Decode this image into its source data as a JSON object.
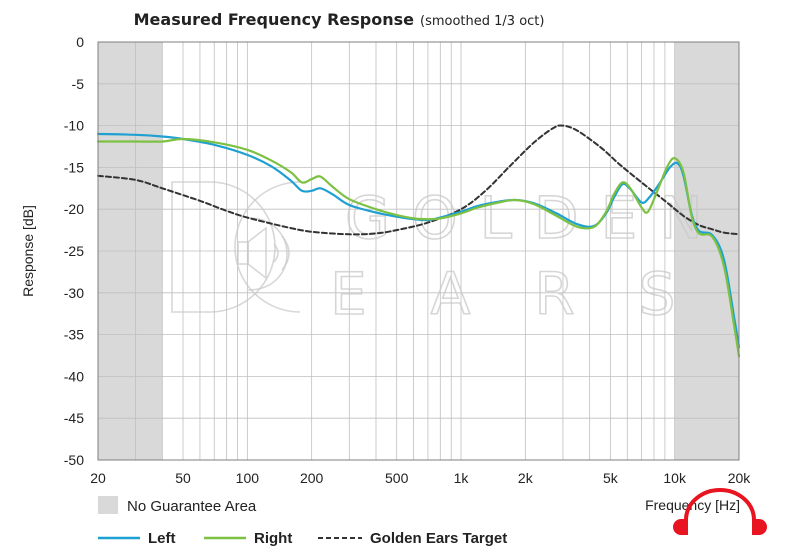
{
  "chart_data": {
    "type": "line",
    "title": "Measured Frequency Response",
    "subtitle": "(smoothed 1/3 oct)",
    "xlabel": "Frequency [Hz]",
    "ylabel": "Response [dB]",
    "xscale": "log",
    "xlim": [
      20,
      20000
    ],
    "ylim": [
      -50,
      0
    ],
    "x_ticks": [
      {
        "value": 20,
        "label": "20"
      },
      {
        "value": 50,
        "label": "50"
      },
      {
        "value": 100,
        "label": "100"
      },
      {
        "value": 200,
        "label": "200"
      },
      {
        "value": 500,
        "label": "500"
      },
      {
        "value": 1000,
        "label": "1k"
      },
      {
        "value": 2000,
        "label": "2k"
      },
      {
        "value": 5000,
        "label": "5k"
      },
      {
        "value": 10000,
        "label": "10k"
      },
      {
        "value": 20000,
        "label": "20k"
      }
    ],
    "y_ticks": [
      0,
      -5,
      -10,
      -15,
      -20,
      -25,
      -30,
      -35,
      -40,
      -45,
      -50
    ],
    "grid": true,
    "shaded_regions": [
      {
        "label": "No Guarantee Area",
        "from": 20,
        "to": 40,
        "color": "#d9d9d9"
      },
      {
        "label": "No Guarantee Area",
        "from": 10000,
        "to": 20000,
        "color": "#d9d9d9"
      }
    ],
    "legend_position": "bottom",
    "series": [
      {
        "name": "Left",
        "color": "#1ea0d2",
        "style": "solid",
        "points": [
          [
            20,
            -11
          ],
          [
            30,
            -11.1
          ],
          [
            40,
            -11.3
          ],
          [
            50,
            -11.6
          ],
          [
            70,
            -12.3
          ],
          [
            100,
            -13.5
          ],
          [
            130,
            -14.9
          ],
          [
            160,
            -16.6
          ],
          [
            180,
            -17.8
          ],
          [
            200,
            -17.8
          ],
          [
            220,
            -17.5
          ],
          [
            250,
            -18.2
          ],
          [
            300,
            -19.5
          ],
          [
            400,
            -20.4
          ],
          [
            500,
            -20.9
          ],
          [
            600,
            -21.2
          ],
          [
            700,
            -21.3
          ],
          [
            800,
            -21
          ],
          [
            1000,
            -20.3
          ],
          [
            1200,
            -19.6
          ],
          [
            1500,
            -19.1
          ],
          [
            1800,
            -18.9
          ],
          [
            2200,
            -19.3
          ],
          [
            2800,
            -20.5
          ],
          [
            3500,
            -21.8
          ],
          [
            4200,
            -22
          ],
          [
            4800,
            -20.4
          ],
          [
            5200,
            -18.6
          ],
          [
            5700,
            -17
          ],
          [
            6200,
            -17.6
          ],
          [
            7000,
            -19.2
          ],
          [
            7600,
            -18.6
          ],
          [
            8500,
            -16.9
          ],
          [
            9500,
            -15
          ],
          [
            10300,
            -14.5
          ],
          [
            11000,
            -16
          ],
          [
            12000,
            -20.6
          ],
          [
            13000,
            -22.6
          ],
          [
            15000,
            -23.1
          ],
          [
            17000,
            -26
          ],
          [
            19000,
            -33
          ],
          [
            20000,
            -36.5
          ]
        ]
      },
      {
        "name": "Right",
        "color": "#7cc142",
        "style": "solid",
        "points": [
          [
            20,
            -11.9
          ],
          [
            30,
            -11.9
          ],
          [
            40,
            -11.9
          ],
          [
            50,
            -11.6
          ],
          [
            70,
            -12
          ],
          [
            100,
            -12.9
          ],
          [
            130,
            -14.2
          ],
          [
            160,
            -15.6
          ],
          [
            180,
            -16.8
          ],
          [
            200,
            -16.4
          ],
          [
            220,
            -16.1
          ],
          [
            250,
            -17.3
          ],
          [
            300,
            -18.8
          ],
          [
            400,
            -20
          ],
          [
            500,
            -20.7
          ],
          [
            600,
            -21.1
          ],
          [
            700,
            -21.2
          ],
          [
            800,
            -21.1
          ],
          [
            1000,
            -20.5
          ],
          [
            1200,
            -19.8
          ],
          [
            1500,
            -19.2
          ],
          [
            1800,
            -18.9
          ],
          [
            2200,
            -19.4
          ],
          [
            2800,
            -20.8
          ],
          [
            3500,
            -22.1
          ],
          [
            4200,
            -22.1
          ],
          [
            4800,
            -20.2
          ],
          [
            5200,
            -18.2
          ],
          [
            5700,
            -16.8
          ],
          [
            6200,
            -17.5
          ],
          [
            7000,
            -19.8
          ],
          [
            7500,
            -20.3
          ],
          [
            8300,
            -17.8
          ],
          [
            9200,
            -15
          ],
          [
            10000,
            -13.9
          ],
          [
            11000,
            -15.6
          ],
          [
            12000,
            -20.8
          ],
          [
            13000,
            -22.9
          ],
          [
            15000,
            -23.3
          ],
          [
            17000,
            -26.8
          ],
          [
            19000,
            -34
          ],
          [
            20000,
            -37.6
          ]
        ]
      },
      {
        "name": "Golden Ears Target",
        "color": "#333333",
        "style": "dashed",
        "points": [
          [
            20,
            -16
          ],
          [
            30,
            -16.5
          ],
          [
            40,
            -17.5
          ],
          [
            60,
            -19
          ],
          [
            80,
            -20.2
          ],
          [
            100,
            -21
          ],
          [
            150,
            -22.1
          ],
          [
            200,
            -22.7
          ],
          [
            300,
            -23
          ],
          [
            400,
            -22.9
          ],
          [
            500,
            -22.5
          ],
          [
            700,
            -21.6
          ],
          [
            1000,
            -20
          ],
          [
            1300,
            -17.8
          ],
          [
            1700,
            -14.8
          ],
          [
            2200,
            -12
          ],
          [
            2700,
            -10.3
          ],
          [
            3000,
            -10
          ],
          [
            3500,
            -10.6
          ],
          [
            4500,
            -12.6
          ],
          [
            5500,
            -14.6
          ],
          [
            7000,
            -16.8
          ],
          [
            9000,
            -19
          ],
          [
            11000,
            -20.8
          ],
          [
            13000,
            -21.9
          ],
          [
            15000,
            -22.4
          ],
          [
            17000,
            -22.8
          ],
          [
            20000,
            -23
          ]
        ]
      }
    ]
  },
  "legend": {
    "no_guarantee_label": "No Guarantee Area",
    "items": [
      {
        "name": "Left",
        "color": "#1ea0d2",
        "style": "solid"
      },
      {
        "name": "Right",
        "color": "#7cc142",
        "style": "solid"
      },
      {
        "name": "Golden Ears Target",
        "color": "#333333",
        "style": "dashed"
      }
    ]
  },
  "watermark": {
    "brand_top": "GOLDEN",
    "brand_bottom": "EARS"
  },
  "colors": {
    "grid": "#bfbfbf",
    "frame": "#7f7f7f",
    "shade": "#d9d9d9",
    "logo_red": "#e8141f"
  },
  "icons": {
    "corner_logo": "headphones-icon",
    "watermark_logo": "speaker-icon"
  }
}
